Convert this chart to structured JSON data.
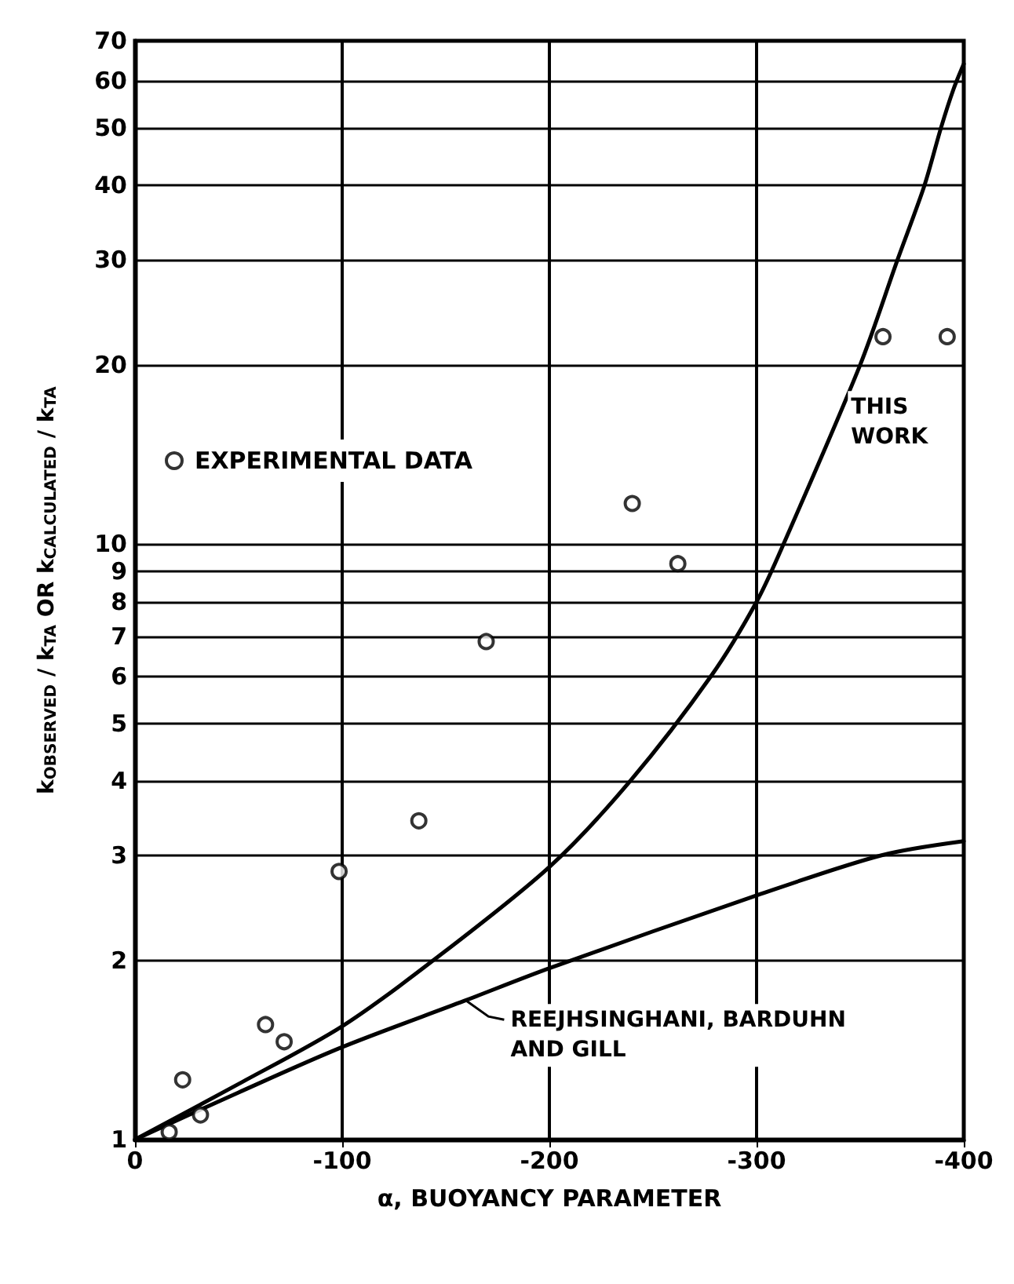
{
  "chart_data": {
    "type": "scatter",
    "xlabel": "α, BUOYANCY PARAMETER",
    "ylabel": "k$_{OBSERVED}$ / k$_{TA}$ OR k$_{CALCULATED}$ / k$_{TA}$",
    "series": [
      {
        "name": "EXPERIMENTAL DATA",
        "color": "#000000",
        "marker": "circle",
        "x": [
          -16.5,
          -23,
          -31.6,
          -63,
          -72,
          -98.5,
          -137,
          -169.5,
          -240,
          -262,
          -361,
          -392
        ],
        "values": [
          1.03,
          1.26,
          1.1,
          1.56,
          1.46,
          2.82,
          3.43,
          6.86,
          11.7,
          9.27,
          22.3,
          22.3
        ]
      },
      {
        "type": "line",
        "color": "#000000",
        "marker": "none",
        "line_style": "solid",
        "x": [
          0,
          -50,
          -100,
          -144,
          -200,
          -239,
          -278,
          -300,
          -313,
          -350,
          -368,
          -381,
          -389,
          -395,
          -400
        ],
        "values": [
          1,
          1.24,
          1.55,
          2,
          2.87,
          4,
          6,
          8,
          10,
          20,
          30,
          40,
          50,
          58,
          64
        ]
      },
      {
        "type": "line",
        "color": "#000000",
        "marker": "none",
        "line_style": "solid",
        "x": [
          0,
          -50,
          -100,
          -159,
          -200,
          -300,
          -360,
          -400
        ],
        "values": [
          1,
          1.2,
          1.43,
          1.71,
          1.94,
          2.57,
          3,
          3.17
        ]
      }
    ],
    "annotations": [
      {
        "text": "THIS WORK",
        "x": -338,
        "y": 16
      },
      {
        "text": "REEJHSINGHANI, BARDUHN AND GILL",
        "x": -160,
        "y": 1.71
      }
    ],
    "xlim": [
      0,
      -400
    ],
    "xticks": [
      0,
      -100,
      -200,
      -300,
      -400
    ],
    "ylim": [
      1,
      70
    ],
    "yticks": [
      1,
      2,
      3,
      4,
      5,
      6,
      7,
      8,
      9,
      10,
      20,
      30,
      40,
      50,
      60,
      70
    ],
    "log": "y",
    "grid": true,
    "legend": "top left"
  }
}
